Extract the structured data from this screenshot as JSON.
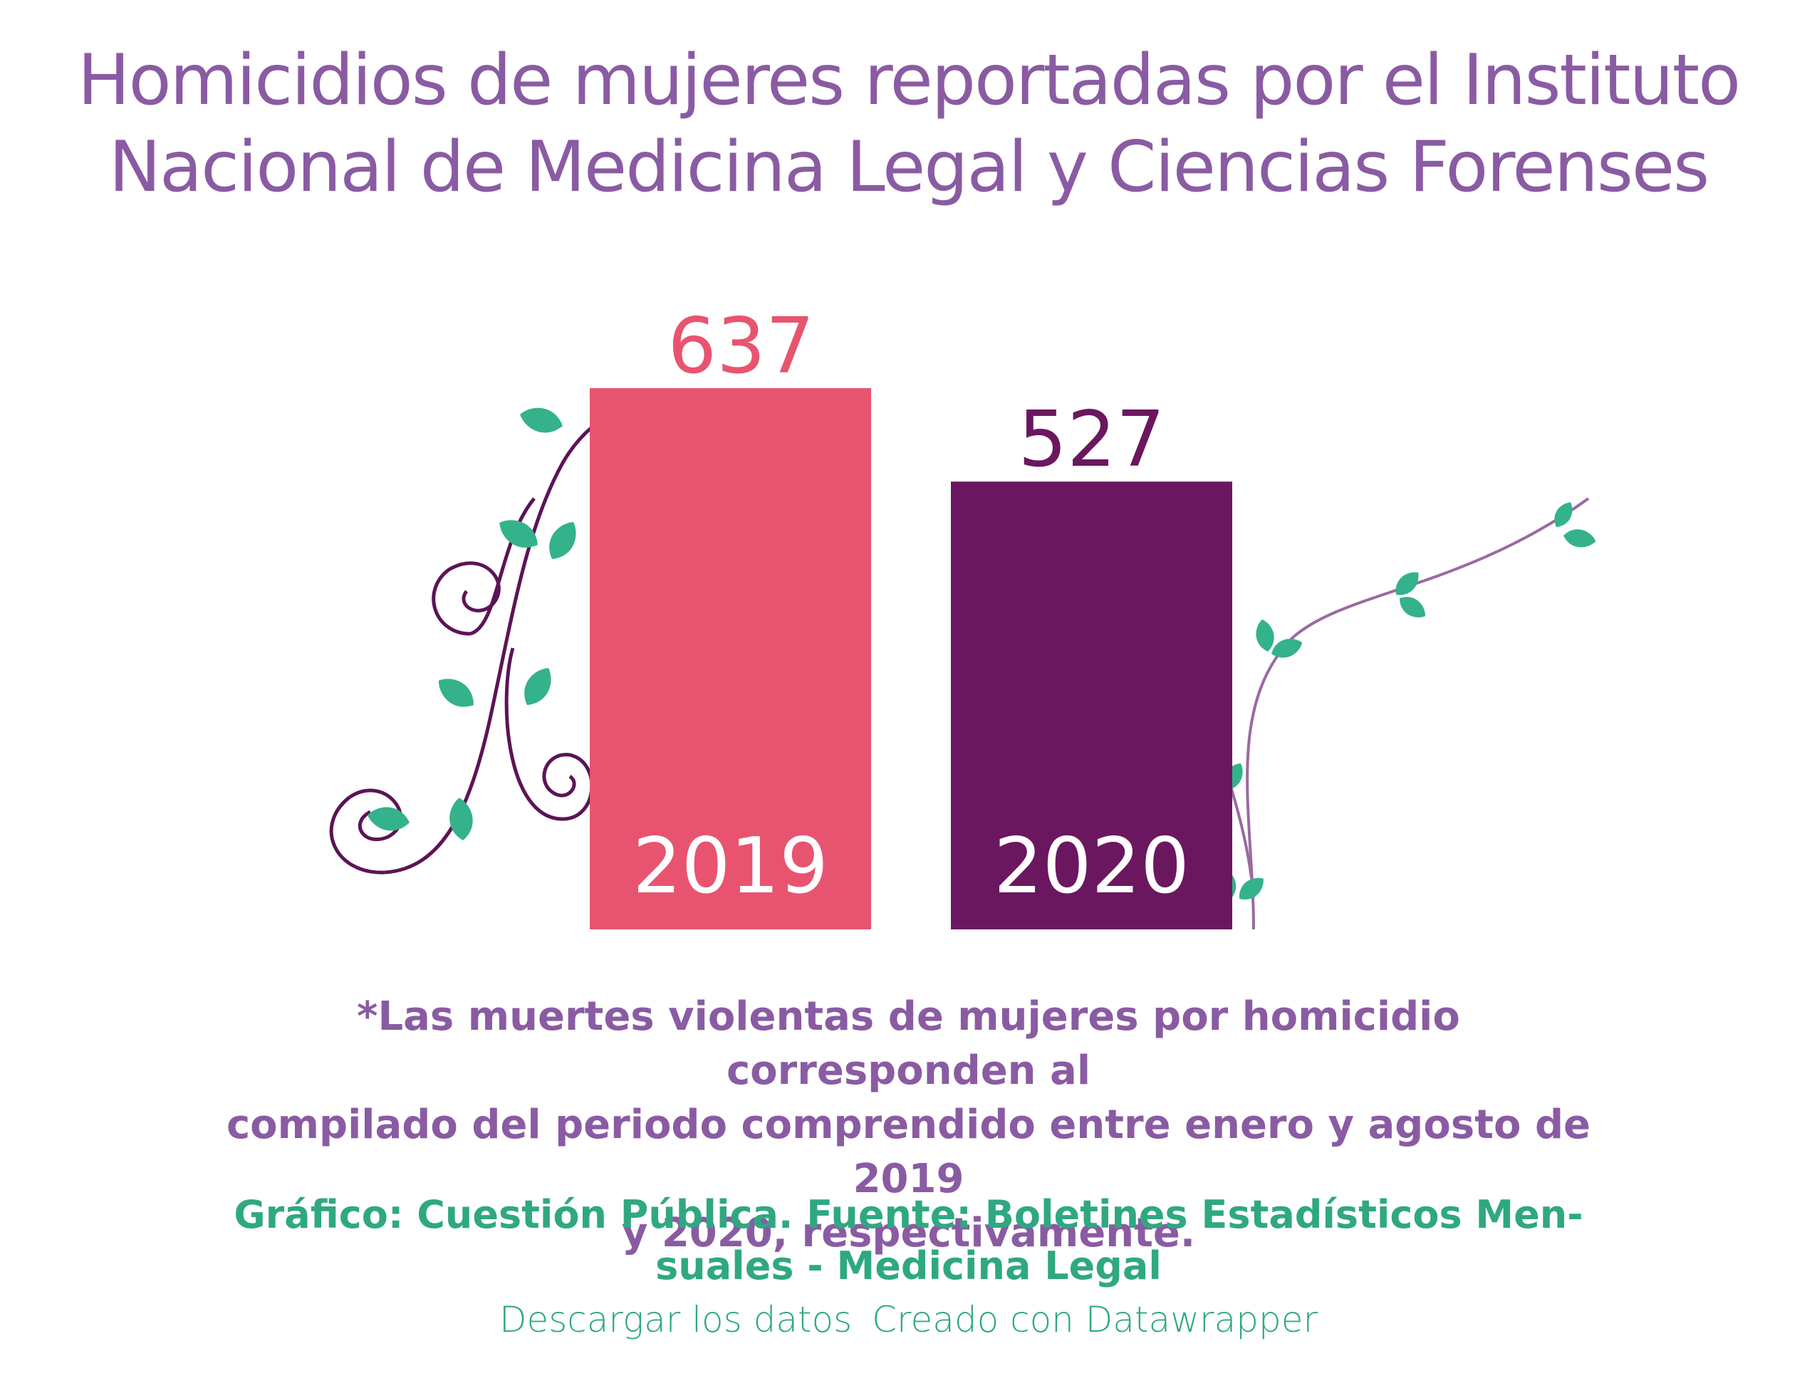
{
  "title_lines": [
    "Homicidios de mujeres reportadas por el Instituto",
    "Nacional de Medicina Legal y Ciencias Forenses"
  ],
  "chart_data": {
    "type": "bar",
    "categories": [
      "2019",
      "2020"
    ],
    "values": [
      637,
      527
    ],
    "colors": [
      "#e8546f",
      "#6a175f"
    ],
    "value_label_colors": [
      "#e8546f",
      "#6a175f"
    ],
    "title": "Homicidios de mujeres reportadas por el Instituto Nacional de Medicina Legal y Ciencias Forenses",
    "xlabel": "",
    "ylabel": "",
    "grid": false
  },
  "note_lines": [
    "*Las muertes violentas de mujeres por homicidio corresponden al",
    "compilado del periodo comprendido entre enero y agosto de 2019",
    "y 2020, respectivamente."
  ],
  "credit_lines": [
    "Gráfico: Cuestión Pública. Fuente: Boletines Estadísticos Men-",
    "suales - Medicina Legal"
  ],
  "links": {
    "download": "Descargar los datos",
    "created": "Creado con Datawrapper"
  },
  "decoration": {
    "vine_color_dark": "#5b1456",
    "vine_color_light": "#9a6aa0",
    "leaf_color": "#34b28b"
  }
}
